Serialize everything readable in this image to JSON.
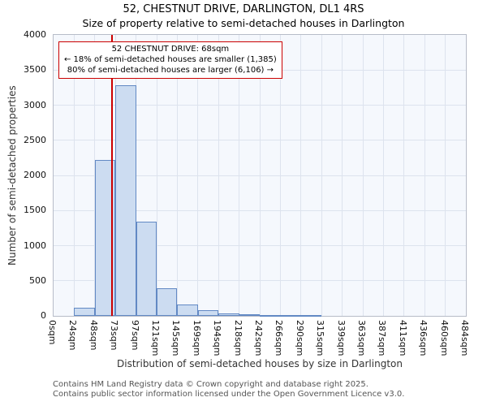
{
  "title": "52, CHESTNUT DRIVE, DARLINGTON, DL1 4RS",
  "subtitle": "Size of property relative to semi-detached houses in Darlington",
  "chart_data": {
    "type": "bar",
    "title": "52, CHESTNUT DRIVE, DARLINGTON, DL1 4RS",
    "subtitle": "Size of property relative to semi-detached houses in Darlington",
    "xlabel": "Distribution of semi-detached houses by size in Darlington",
    "ylabel": "Number of semi-detached properties",
    "xlim": [
      0,
      484
    ],
    "ylim": [
      0,
      4000
    ],
    "yticks": [
      0,
      500,
      1000,
      1500,
      2000,
      2500,
      3000,
      3500,
      4000
    ],
    "bin_width_sqm": 24.2,
    "categories": [
      "0sqm",
      "24sqm",
      "48sqm",
      "73sqm",
      "97sqm",
      "121sqm",
      "145sqm",
      "169sqm",
      "194sqm",
      "218sqm",
      "242sqm",
      "266sqm",
      "290sqm",
      "315sqm",
      "339sqm",
      "363sqm",
      "387sqm",
      "411sqm",
      "436sqm",
      "460sqm",
      "484sqm"
    ],
    "values": [
      0,
      110,
      2220,
      3280,
      1340,
      390,
      165,
      85,
      40,
      25,
      12,
      8,
      4,
      0,
      0,
      0,
      0,
      0,
      0,
      0
    ],
    "grid": true,
    "legend": null,
    "marker": {
      "label": "52 CHESTNUT DRIVE",
      "value_sqm": 68
    },
    "annotation": {
      "line1": "52 CHESTNUT DRIVE: 68sqm",
      "line2": "← 18% of semi-detached houses are smaller (1,385)",
      "line3": "80% of semi-detached houses are larger (6,106) →"
    },
    "colors": {
      "bar_fill": "#ccdcf1",
      "bar_border": "#6289c4",
      "marker_line": "#cc0000",
      "annotation_border": "#cc0000",
      "grid": "#dde3ee",
      "plot_bg": "#f5f8fd"
    }
  },
  "footer": {
    "line1": "Contains HM Land Registry data © Crown copyright and database right 2025.",
    "line2": "Contains public sector information licensed under the Open Government Licence v3.0."
  }
}
